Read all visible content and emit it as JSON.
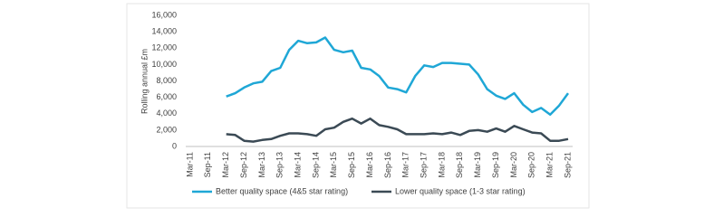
{
  "chart_data": {
    "type": "line",
    "y_label": "Rolling annual £m",
    "categories": [
      "Mar-11",
      null,
      "Sep-11",
      null,
      "Mar-12",
      null,
      "Sep-12",
      null,
      "Mar-13",
      null,
      "Sep-13",
      null,
      "Mar-14",
      null,
      "Sep-14",
      null,
      "Mar-15",
      null,
      "Sep-15",
      null,
      "Mar-16",
      null,
      "Sep-16",
      null,
      "Mar-17",
      null,
      "Sep-17",
      null,
      "Mar-18",
      null,
      "Sep-18",
      null,
      "Mar-19",
      null,
      "Sep-19",
      null,
      "Mar-20",
      null,
      "Sep-20",
      null,
      "Mar-21",
      null,
      "Sep-21"
    ],
    "series": [
      {
        "name": "Better quality space (4&5 star rating)",
        "color": "#1fa7d6",
        "values": [
          null,
          null,
          null,
          null,
          6100,
          6500,
          7200,
          7700,
          7900,
          9200,
          9600,
          11800,
          12900,
          12600,
          12700,
          13300,
          11800,
          11500,
          11700,
          9600,
          9400,
          8600,
          7200,
          7000,
          6600,
          8600,
          9900,
          9700,
          10200,
          10200,
          10100,
          10000,
          8800,
          7000,
          6200,
          5800,
          6500,
          5100,
          4200,
          4700,
          3900,
          5000,
          6500
        ]
      },
      {
        "name": "Lower quality space (1-3 star rating)",
        "color": "#3b4a55",
        "values": [
          null,
          null,
          null,
          null,
          1500,
          1400,
          700,
          600,
          800,
          900,
          1300,
          1600,
          1600,
          1500,
          1300,
          2100,
          2300,
          3000,
          3400,
          2800,
          3400,
          2600,
          2400,
          2100,
          1500,
          1500,
          1500,
          1600,
          1500,
          1700,
          1400,
          1900,
          2000,
          1800,
          2200,
          1800,
          2500,
          2100,
          1700,
          1600,
          700,
          700,
          900
        ]
      }
    ],
    "ylim": [
      0,
      16000
    ],
    "yticks": [
      0,
      {
        "value": 2000,
        "label": "2,000"
      },
      {
        "value": 4000,
        "label": "4,000"
      },
      {
        "value": 6000,
        "label": "6,000"
      },
      {
        "value": 8000,
        "label": "8,000"
      },
      {
        "value": 10000,
        "label": "10,000"
      },
      {
        "value": 12000,
        "label": "12,000"
      },
      {
        "value": 14000,
        "label": "14,000"
      },
      {
        "value": 16000,
        "label": "16,000"
      }
    ],
    "grid": false
  }
}
